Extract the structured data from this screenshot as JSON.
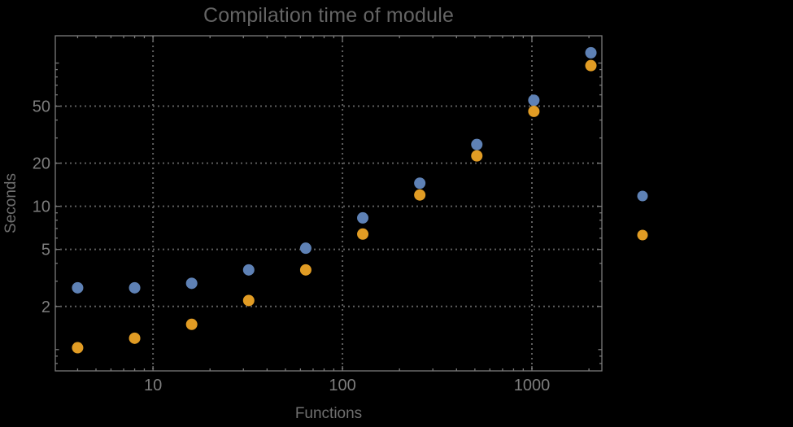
{
  "window": {
    "background": "#000000"
  },
  "title": "Compilation time of module",
  "axes": {
    "xlabel": "Functions",
    "ylabel": "Seconds"
  },
  "chart_data": {
    "type": "scatter",
    "title": "Compilation time of module",
    "xlabel": "Functions",
    "ylabel": "Seconds",
    "x_scale": "log",
    "y_scale": "log",
    "xlim": [
      3.05,
      2340
    ],
    "ylim": [
      0.71,
      155
    ],
    "x_ticks": [
      10,
      100,
      1000
    ],
    "y_ticks": [
      2,
      5,
      10,
      20,
      50
    ],
    "grid": "dotted gray lines at labeled ticks, frame box with inward log minor ticks on all four edges",
    "legend_position": "outside right of frame, color disk markers only (no visible text labels)",
    "x": [
      4,
      8,
      16,
      32,
      64,
      128,
      256,
      512,
      1024,
      2048
    ],
    "series": [
      {
        "name": "series-1-blue",
        "marker": "disk",
        "color": "#5e81b5",
        "values": [
          2.7,
          2.7,
          2.9,
          3.6,
          5.1,
          8.3,
          14.5,
          27,
          55,
          118
        ]
      },
      {
        "name": "series-2-orange",
        "marker": "disk",
        "color": "#e19c24",
        "values": [
          1.03,
          1.2,
          1.5,
          2.2,
          3.6,
          6.4,
          12,
          22.5,
          46,
          96
        ]
      }
    ]
  },
  "colors": {
    "background": "#000000",
    "frame": "#7a7a7a",
    "grid": "#5e5e5e",
    "title_text": "#646464",
    "tick_text": "#7d7d7d",
    "axis_label_text": "#6f6f6f",
    "series1": "#5e81b5",
    "series2": "#e19c24"
  }
}
